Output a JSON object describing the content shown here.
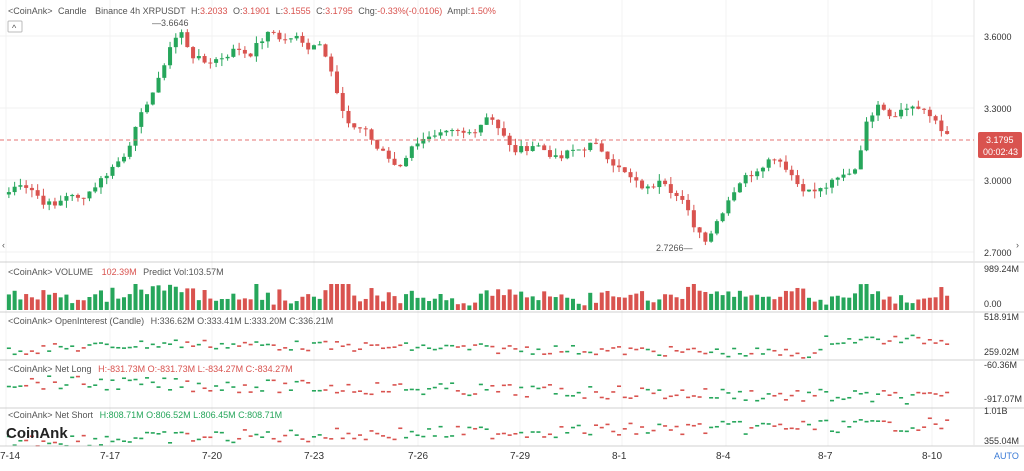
{
  "header": {
    "app_label": "<CoinAnk>",
    "chart_type": "Candle",
    "symbol": "Binance 4h XRPUSDT",
    "ohlc": {
      "H": "3.2033",
      "O": "3.1901",
      "L": "3.1555",
      "C": "3.1795"
    },
    "change": "-0.33%(-0.0106)",
    "amplitude": "1.50%",
    "labels": {
      "H": "H:",
      "O": "O:",
      "L": "L:",
      "C": "C:",
      "chg": "Chg:",
      "ampl": "Ampl:"
    }
  },
  "collapse_button": {
    "icon": "chevron-up-icon",
    "glyph": "^"
  },
  "price_axis": {
    "ticks": [
      "3.6000",
      "3.3000",
      "3.0000",
      "2.7000"
    ],
    "current_price": "3.1795",
    "countdown": "00:02:43"
  },
  "annotations": {
    "high": "3.6646",
    "low": "2.7266"
  },
  "panes": {
    "volume": {
      "label": "<CoinAnk> VOLUME",
      "value": "102.39M",
      "predict": "Predict Vol:103.57M",
      "axis_top": "989.24M",
      "axis_bottom": "0.00"
    },
    "open_interest": {
      "label": "<CoinAnk> OpenInterest (Candle)",
      "ohlc": "H:336.62M  O:333.41M  L:333.20M  C:336.21M",
      "axis_top": "518.91M",
      "axis_bottom": "259.02M"
    },
    "net_long": {
      "label": "<CoinAnk> Net Long",
      "ohlc": "H:-831.73M  O:-831.73M  L:-834.27M  C:-834.27M",
      "axis_top": "-60.36M",
      "axis_bottom": "-917.07M"
    },
    "net_short": {
      "label": "<CoinAnk> Net Short",
      "ohlc": "H:808.71M  O:806.52M  L:806.45M  C:808.71M",
      "axis_top": "1.01B",
      "axis_bottom": "355.04M"
    }
  },
  "watermark": "CoinAnk",
  "dates": [
    "7-14",
    "7-17",
    "7-20",
    "7-23",
    "7-26",
    "7-29",
    "8-1",
    "8-4",
    "8-7",
    "8-10"
  ],
  "auto_label": "AUTO",
  "colors": {
    "up": "#26a65b",
    "down": "#d9534f",
    "price_line": "#e57373",
    "grid": "#eeeeee"
  },
  "chart_data": {
    "type": "candlestick",
    "title": "",
    "x_labels": [
      "7-14",
      "7-17",
      "7-20",
      "7-23",
      "7-26",
      "7-29",
      "8-1",
      "8-4",
      "8-7",
      "8-10"
    ],
    "ylim": [
      2.7,
      3.7
    ],
    "y_ticks": [
      2.7,
      3.0,
      3.3,
      3.6
    ],
    "close_series": [
      2.95,
      2.99,
      2.96,
      2.91,
      2.89,
      2.94,
      2.92,
      2.95,
      3.0,
      3.05,
      3.1,
      3.2,
      3.32,
      3.4,
      3.55,
      3.62,
      3.52,
      3.49,
      3.5,
      3.52,
      3.55,
      3.52,
      3.58,
      3.62,
      3.58,
      3.6,
      3.55,
      3.58,
      3.5,
      3.3,
      3.2,
      3.23,
      3.14,
      3.1,
      3.05,
      3.12,
      3.18,
      3.17,
      3.19,
      3.2,
      3.19,
      3.22,
      3.28,
      3.2,
      3.12,
      3.13,
      3.15,
      3.12,
      3.08,
      3.12,
      3.13,
      3.15,
      3.12,
      3.06,
      3.02,
      2.98,
      2.96,
      3.02,
      2.95,
      2.9,
      2.8,
      2.75,
      2.84,
      2.93,
      3.0,
      3.03,
      3.07,
      3.1,
      3.05,
      2.98,
      2.95,
      2.96,
      2.99,
      3.02,
      3.05,
      3.24,
      3.33,
      3.27,
      3.29,
      3.31,
      3.28,
      3.25,
      3.18
    ]
  }
}
